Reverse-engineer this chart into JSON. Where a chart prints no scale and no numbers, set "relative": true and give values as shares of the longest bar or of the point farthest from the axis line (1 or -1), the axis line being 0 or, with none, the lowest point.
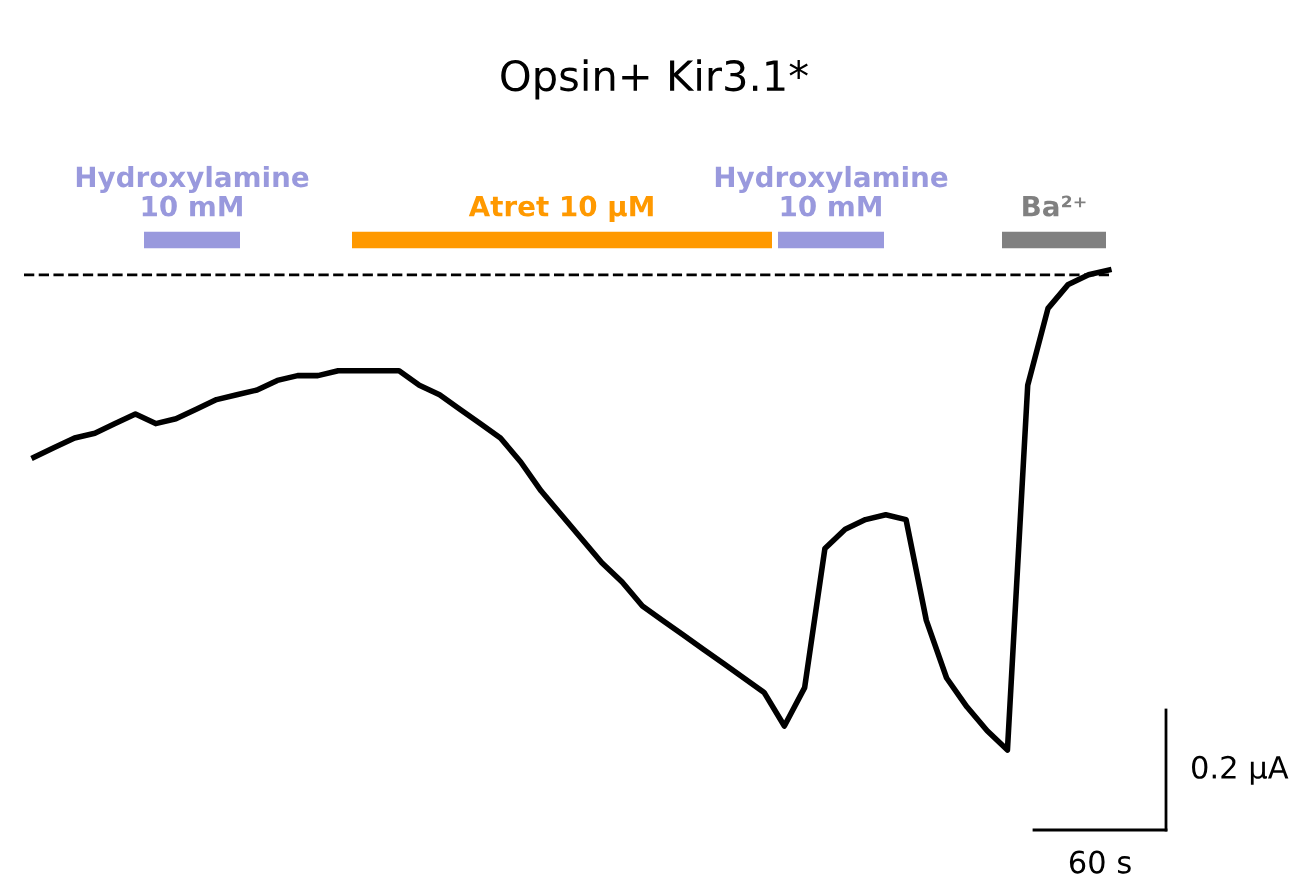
{
  "chart_data": {
    "type": "line",
    "title": "Opsin+ Kir3.1*",
    "relative": true,
    "categories": [
      null,
      null,
      null,
      null,
      null,
      null,
      null,
      null,
      null,
      null,
      null,
      null,
      null,
      null,
      null,
      null,
      null,
      null,
      null,
      null,
      null,
      null,
      null,
      null,
      null,
      null,
      null,
      null,
      null,
      null,
      null,
      null,
      null,
      null,
      null,
      null,
      null,
      null,
      null,
      null,
      null,
      null,
      null,
      null,
      null,
      null,
      null,
      null,
      null,
      null,
      null,
      null,
      null,
      null
    ],
    "series": [
      {
        "color": "#000000",
        "values": [
          0.61,
          0.63,
          0.65,
          0.66,
          0.68,
          0.7,
          0.68,
          0.69,
          0.71,
          0.73,
          0.74,
          0.75,
          0.77,
          0.78,
          0.78,
          0.79,
          0.79,
          0.79,
          0.79,
          0.76,
          0.74,
          0.71,
          0.68,
          0.65,
          0.6,
          0.54,
          0.49,
          0.44,
          0.39,
          0.35,
          0.3,
          0.27,
          0.24,
          0.21,
          0.18,
          0.15,
          0.12,
          0.05,
          0.13,
          0.42,
          0.46,
          0.48,
          0.49,
          0.48,
          0.27,
          0.15,
          0.09,
          0.04,
          0,
          0.76,
          0.92,
          0.97,
          0.99,
          1
        ]
      }
    ],
    "ref_lines": [
      {
        "axis": "y",
        "value": 0.99,
        "color": "#000000",
        "line_style": "dashed"
      }
    ],
    "annotations": [
      "Hydroxylamine\n10 mM",
      "Atret 10 µM",
      "Hydroxylamine\n10 mM",
      "Ba²⁺",
      "0.2 µA",
      "60 s"
    ]
  }
}
